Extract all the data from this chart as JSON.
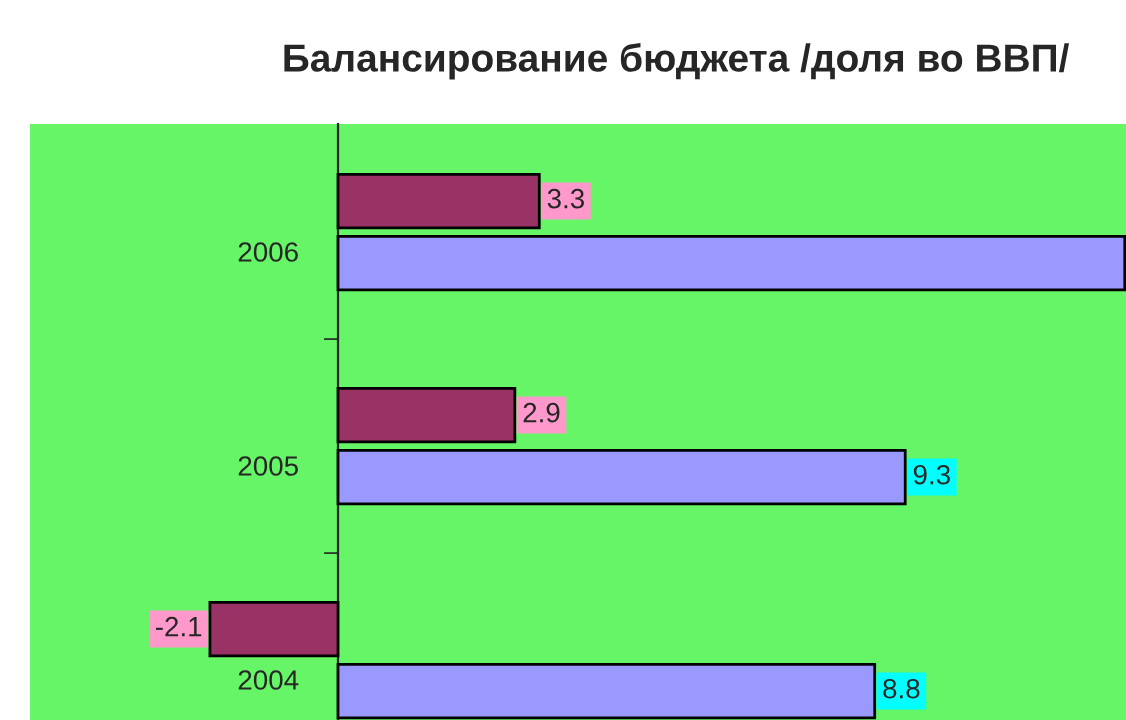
{
  "chart_data": {
    "type": "bar",
    "orientation": "horizontal",
    "title": "Балансирование бюджета /доля во ВВП/",
    "categories": [
      "2006",
      "2005",
      "2004"
    ],
    "series": [
      {
        "color": "#993366",
        "values": [
          3.3,
          2.9,
          -2.1
        ],
        "value_labels": [
          "3.3",
          "2.9",
          "-2.1"
        ]
      },
      {
        "color": "#9999ff",
        "values": [
          12.9,
          9.3,
          8.8
        ],
        "value_labels": [
          null,
          "9.3",
          "8.8"
        ]
      }
    ],
    "xlim": [
      -5.05,
      12.92
    ],
    "grid": false,
    "legend": false
  }
}
